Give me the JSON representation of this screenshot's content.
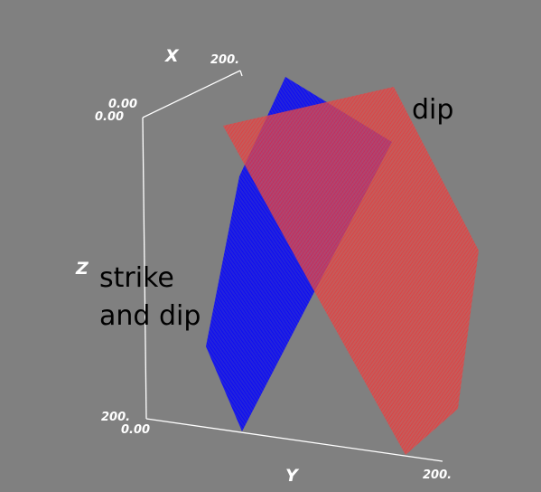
{
  "colors": {
    "background": "#808080",
    "axes": "#ffffff",
    "plane_dip": "#e03030",
    "plane_strike_and_dip": "#1a1aff"
  },
  "axes": {
    "x": {
      "label": "X",
      "min_label": "0.00",
      "max_label": "200."
    },
    "y": {
      "label": "Y",
      "min_label": "0.00",
      "max_label": "200."
    },
    "z": {
      "label": "Z",
      "min_label": "0.00",
      "max_label": "200."
    }
  },
  "planes": [
    {
      "id": "dip",
      "label": "dip",
      "color": "#e03030"
    },
    {
      "id": "strike_and_dip",
      "label_line1": "strike",
      "label_line2": "and dip",
      "color": "#1a1aff"
    }
  ]
}
